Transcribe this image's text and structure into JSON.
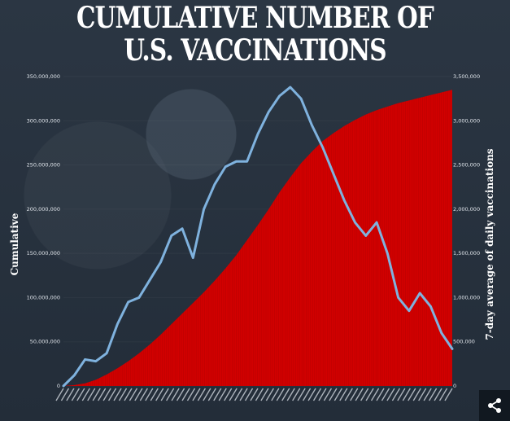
{
  "title": {
    "line1": "CUMULATIVE NUMBER OF",
    "line2": "U.S. VACCINATIONS"
  },
  "share_icon": "share-icon",
  "colors": {
    "background": "#26313e",
    "cumulative_fill": "#d10000",
    "daily_line": "#7fb2de",
    "text": "#ffffff"
  },
  "chart_data": {
    "type": "area",
    "left_axis": {
      "label": "Cumulative",
      "ylim": [
        0,
        350000000
      ],
      "ticks": [
        "0",
        "50,000,000",
        "100,000,000",
        "150,000,000",
        "200,000,000",
        "250,000,000",
        "300,000,000",
        "350,000,000"
      ]
    },
    "right_axis": {
      "label": "7-day average of daily vaccinations",
      "ylim": [
        0,
        3500000
      ],
      "ticks": [
        "0",
        "500,000",
        "1,000,000",
        "1,500,000",
        "2,000,000",
        "2,500,000",
        "3,000,000",
        "3,500,000"
      ]
    },
    "x_axis": {
      "label": "",
      "tick_labels_legible": false,
      "num_points": 37
    },
    "series": [
      {
        "type": "area",
        "axis": "left",
        "values": [
          0,
          1000000,
          3000000,
          7000000,
          13000000,
          20000000,
          28000000,
          37000000,
          47000000,
          58000000,
          70000000,
          82000000,
          94000000,
          106000000,
          119000000,
          133000000,
          148000000,
          165000000,
          182000000,
          200000000,
          219000000,
          236000000,
          252000000,
          265000000,
          277000000,
          286000000,
          294000000,
          301000000,
          307000000,
          312000000,
          316000000,
          320000000,
          323000000,
          326000000,
          329000000,
          332000000,
          335000000
        ]
      },
      {
        "type": "line",
        "axis": "right",
        "values": [
          0,
          120000,
          300000,
          280000,
          370000,
          700000,
          950000,
          1000000,
          1200000,
          1400000,
          1700000,
          1780000,
          1450000,
          2000000,
          2280000,
          2480000,
          2540000,
          2540000,
          2850000,
          3100000,
          3280000,
          3380000,
          3250000,
          2950000,
          2700000,
          2400000,
          2100000,
          1850000,
          1700000,
          1850000,
          1500000,
          1000000,
          850000,
          1050000,
          900000,
          600000,
          420000
        ]
      }
    ]
  }
}
